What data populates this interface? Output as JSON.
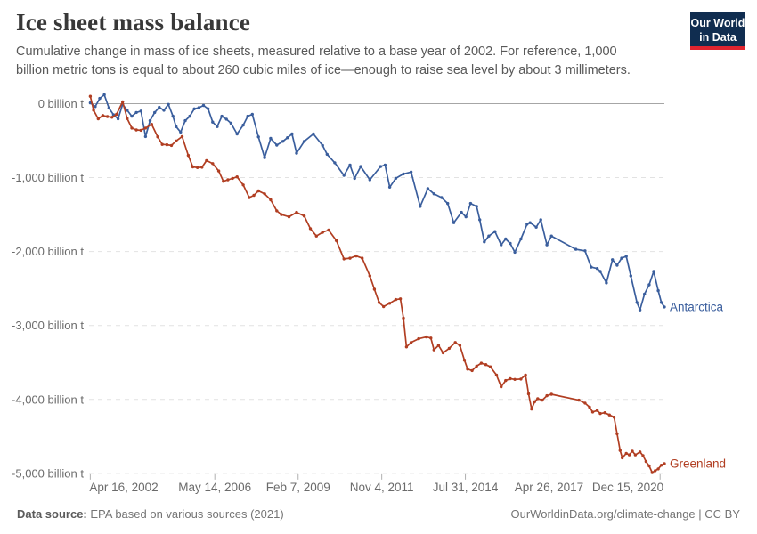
{
  "header": {
    "title": "Ice sheet mass balance",
    "subtitle": "Cumulative change in mass of ice sheets, measured relative to a base year of 2002. For reference, 1,000 billion metric tons is equal to about 260 cubic miles of ice—enough to raise sea level by about 3 millimeters.",
    "logo": {
      "line1": "Our World",
      "line2": "in Data",
      "bg_color": "#102d50",
      "bar_color": "#e0242f"
    }
  },
  "footer": {
    "source_label": "Data source:",
    "source_text": "EPA based on various sources (2021)",
    "credit": "OurWorldinData.org/climate-change | CC BY"
  },
  "chart_data": {
    "type": "line",
    "title": "Ice sheet mass balance",
    "xlabel": "",
    "ylabel": "billion t",
    "xlim": [
      2002.25,
      2021.1
    ],
    "ylim": [
      -5050,
      150
    ],
    "grid": "dashed-horizontal",
    "legend_position": "end-of-line",
    "colors": {
      "zero_line": "#a6a6a6",
      "gridline": "#e2e2e2",
      "tick": "#b0b0b0",
      "axis_text": "#6b6b6b"
    },
    "y_ticks": [
      {
        "label": "0 billion t",
        "value": 0
      },
      {
        "label": "-1,000 billion t",
        "value": -1000
      },
      {
        "label": "-2,000 billion t",
        "value": -2000
      },
      {
        "label": "-3,000 billion t",
        "value": -3000
      },
      {
        "label": "-4,000 billion t",
        "value": -4000
      },
      {
        "label": "-5,000 billion t",
        "value": -5000
      }
    ],
    "x_ticks": [
      {
        "label": "Apr 16, 2002",
        "year": 2002.29
      },
      {
        "label": "May 14, 2006",
        "year": 2006.37
      },
      {
        "label": "Feb 7, 2009",
        "year": 2009.1
      },
      {
        "label": "Nov 4, 2011",
        "year": 2011.84
      },
      {
        "label": "Jul 31, 2014",
        "year": 2014.58
      },
      {
        "label": "Apr 26, 2017",
        "year": 2017.32
      },
      {
        "label": "Dec 15, 2020",
        "year": 2020.96
      }
    ],
    "series": [
      {
        "name": "Antarctica",
        "color": "#3a5e9d",
        "points": [
          [
            2002.29,
            10
          ],
          [
            2002.45,
            -40
          ],
          [
            2002.6,
            70
          ],
          [
            2002.75,
            120
          ],
          [
            2002.9,
            -60
          ],
          [
            2003.05,
            -150
          ],
          [
            2003.2,
            -205
          ],
          [
            2003.35,
            -10
          ],
          [
            2003.5,
            -90
          ],
          [
            2003.65,
            -170
          ],
          [
            2003.8,
            -120
          ],
          [
            2003.95,
            -100
          ],
          [
            2004.1,
            -445
          ],
          [
            2004.25,
            -230
          ],
          [
            2004.4,
            -120
          ],
          [
            2004.55,
            -50
          ],
          [
            2004.7,
            -90
          ],
          [
            2004.85,
            -10
          ],
          [
            2005.0,
            -170
          ],
          [
            2005.1,
            -310
          ],
          [
            2005.25,
            -385
          ],
          [
            2005.4,
            -230
          ],
          [
            2005.55,
            -170
          ],
          [
            2005.7,
            -70
          ],
          [
            2005.85,
            -55
          ],
          [
            2006.0,
            -25
          ],
          [
            2006.15,
            -70
          ],
          [
            2006.3,
            -250
          ],
          [
            2006.45,
            -310
          ],
          [
            2006.6,
            -170
          ],
          [
            2006.75,
            -210
          ],
          [
            2006.9,
            -265
          ],
          [
            2007.1,
            -410
          ],
          [
            2007.3,
            -290
          ],
          [
            2007.45,
            -170
          ],
          [
            2007.6,
            -145
          ],
          [
            2007.8,
            -450
          ],
          [
            2008.0,
            -730
          ],
          [
            2008.2,
            -470
          ],
          [
            2008.4,
            -560
          ],
          [
            2008.6,
            -510
          ],
          [
            2008.75,
            -460
          ],
          [
            2008.9,
            -410
          ],
          [
            2009.05,
            -670
          ],
          [
            2009.3,
            -510
          ],
          [
            2009.6,
            -410
          ],
          [
            2009.9,
            -565
          ],
          [
            2010.05,
            -685
          ],
          [
            2010.3,
            -800
          ],
          [
            2010.6,
            -970
          ],
          [
            2010.8,
            -830
          ],
          [
            2010.95,
            -1010
          ],
          [
            2011.15,
            -850
          ],
          [
            2011.45,
            -1030
          ],
          [
            2011.8,
            -850
          ],
          [
            2011.95,
            -830
          ],
          [
            2012.1,
            -1130
          ],
          [
            2012.3,
            -1010
          ],
          [
            2012.55,
            -950
          ],
          [
            2012.8,
            -925
          ],
          [
            2013.1,
            -1390
          ],
          [
            2013.35,
            -1150
          ],
          [
            2013.55,
            -1220
          ],
          [
            2013.8,
            -1270
          ],
          [
            2014.0,
            -1350
          ],
          [
            2014.2,
            -1610
          ],
          [
            2014.45,
            -1470
          ],
          [
            2014.6,
            -1530
          ],
          [
            2014.75,
            -1350
          ],
          [
            2014.95,
            -1390
          ],
          [
            2015.05,
            -1570
          ],
          [
            2015.2,
            -1870
          ],
          [
            2015.35,
            -1790
          ],
          [
            2015.55,
            -1730
          ],
          [
            2015.75,
            -1910
          ],
          [
            2015.9,
            -1830
          ],
          [
            2016.05,
            -1890
          ],
          [
            2016.2,
            -2010
          ],
          [
            2016.4,
            -1830
          ],
          [
            2016.6,
            -1630
          ],
          [
            2016.7,
            -1610
          ],
          [
            2016.9,
            -1670
          ],
          [
            2017.05,
            -1570
          ],
          [
            2017.25,
            -1910
          ],
          [
            2017.4,
            -1790
          ],
          [
            2018.2,
            -1970
          ],
          [
            2018.5,
            -1990
          ],
          [
            2018.7,
            -2210
          ],
          [
            2018.9,
            -2230
          ],
          [
            2019.0,
            -2270
          ],
          [
            2019.2,
            -2425
          ],
          [
            2019.4,
            -2110
          ],
          [
            2019.55,
            -2185
          ],
          [
            2019.7,
            -2090
          ],
          [
            2019.85,
            -2065
          ],
          [
            2020.0,
            -2330
          ],
          [
            2020.2,
            -2690
          ],
          [
            2020.3,
            -2790
          ],
          [
            2020.45,
            -2575
          ],
          [
            2020.6,
            -2450
          ],
          [
            2020.75,
            -2270
          ],
          [
            2020.9,
            -2530
          ],
          [
            2021.0,
            -2690
          ],
          [
            2021.1,
            -2750
          ]
        ]
      },
      {
        "name": "Greenland",
        "color": "#b13e22",
        "points": [
          [
            2002.29,
            100
          ],
          [
            2002.4,
            -90
          ],
          [
            2002.55,
            -205
          ],
          [
            2002.7,
            -160
          ],
          [
            2002.85,
            -175
          ],
          [
            2003.0,
            -185
          ],
          [
            2003.15,
            -145
          ],
          [
            2003.35,
            25
          ],
          [
            2003.5,
            -200
          ],
          [
            2003.65,
            -330
          ],
          [
            2003.8,
            -355
          ],
          [
            2003.95,
            -360
          ],
          [
            2004.1,
            -330
          ],
          [
            2004.3,
            -280
          ],
          [
            2004.5,
            -450
          ],
          [
            2004.65,
            -550
          ],
          [
            2004.8,
            -555
          ],
          [
            2004.95,
            -565
          ],
          [
            2005.1,
            -505
          ],
          [
            2005.3,
            -445
          ],
          [
            2005.5,
            -700
          ],
          [
            2005.65,
            -855
          ],
          [
            2005.8,
            -865
          ],
          [
            2005.95,
            -860
          ],
          [
            2006.1,
            -770
          ],
          [
            2006.3,
            -810
          ],
          [
            2006.5,
            -910
          ],
          [
            2006.65,
            -1050
          ],
          [
            2006.8,
            -1030
          ],
          [
            2006.95,
            -1010
          ],
          [
            2007.1,
            -990
          ],
          [
            2007.3,
            -1100
          ],
          [
            2007.5,
            -1270
          ],
          [
            2007.65,
            -1240
          ],
          [
            2007.8,
            -1180
          ],
          [
            2008.0,
            -1220
          ],
          [
            2008.2,
            -1300
          ],
          [
            2008.4,
            -1450
          ],
          [
            2008.55,
            -1500
          ],
          [
            2008.8,
            -1530
          ],
          [
            2009.05,
            -1470
          ],
          [
            2009.3,
            -1520
          ],
          [
            2009.5,
            -1690
          ],
          [
            2009.7,
            -1790
          ],
          [
            2009.9,
            -1740
          ],
          [
            2010.1,
            -1710
          ],
          [
            2010.35,
            -1850
          ],
          [
            2010.6,
            -2100
          ],
          [
            2010.8,
            -2090
          ],
          [
            2011.0,
            -2060
          ],
          [
            2011.2,
            -2090
          ],
          [
            2011.45,
            -2330
          ],
          [
            2011.6,
            -2510
          ],
          [
            2011.75,
            -2690
          ],
          [
            2011.9,
            -2745
          ],
          [
            2012.1,
            -2700
          ],
          [
            2012.3,
            -2650
          ],
          [
            2012.45,
            -2640
          ],
          [
            2012.55,
            -2900
          ],
          [
            2012.65,
            -3290
          ],
          [
            2012.8,
            -3230
          ],
          [
            2013.05,
            -3180
          ],
          [
            2013.3,
            -3155
          ],
          [
            2013.45,
            -3170
          ],
          [
            2013.55,
            -3330
          ],
          [
            2013.7,
            -3270
          ],
          [
            2013.85,
            -3370
          ],
          [
            2014.05,
            -3310
          ],
          [
            2014.25,
            -3230
          ],
          [
            2014.4,
            -3270
          ],
          [
            2014.55,
            -3470
          ],
          [
            2014.65,
            -3590
          ],
          [
            2014.8,
            -3610
          ],
          [
            2014.95,
            -3550
          ],
          [
            2015.1,
            -3510
          ],
          [
            2015.25,
            -3530
          ],
          [
            2015.4,
            -3560
          ],
          [
            2015.6,
            -3670
          ],
          [
            2015.75,
            -3830
          ],
          [
            2015.9,
            -3745
          ],
          [
            2016.05,
            -3720
          ],
          [
            2016.2,
            -3730
          ],
          [
            2016.4,
            -3725
          ],
          [
            2016.55,
            -3670
          ],
          [
            2016.65,
            -3925
          ],
          [
            2016.75,
            -4130
          ],
          [
            2016.85,
            -4030
          ],
          [
            2016.95,
            -3990
          ],
          [
            2017.1,
            -4010
          ],
          [
            2017.25,
            -3950
          ],
          [
            2017.4,
            -3930
          ],
          [
            2018.3,
            -4010
          ],
          [
            2018.5,
            -4050
          ],
          [
            2018.65,
            -4105
          ],
          [
            2018.75,
            -4170
          ],
          [
            2018.9,
            -4150
          ],
          [
            2019.0,
            -4190
          ],
          [
            2019.15,
            -4180
          ],
          [
            2019.3,
            -4210
          ],
          [
            2019.45,
            -4240
          ],
          [
            2019.55,
            -4465
          ],
          [
            2019.65,
            -4690
          ],
          [
            2019.72,
            -4790
          ],
          [
            2019.85,
            -4730
          ],
          [
            2019.95,
            -4750
          ],
          [
            2020.05,
            -4700
          ],
          [
            2020.15,
            -4750
          ],
          [
            2020.3,
            -4710
          ],
          [
            2020.4,
            -4760
          ],
          [
            2020.5,
            -4840
          ],
          [
            2020.6,
            -4900
          ],
          [
            2020.7,
            -4990
          ],
          [
            2020.8,
            -4965
          ],
          [
            2020.9,
            -4940
          ],
          [
            2021.0,
            -4890
          ],
          [
            2021.1,
            -4870
          ]
        ]
      }
    ]
  }
}
